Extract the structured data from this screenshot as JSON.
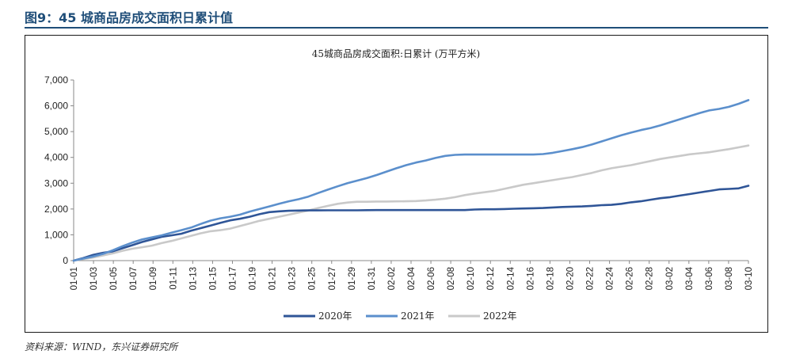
{
  "figure_title": "图9：45 城商品房成交面积日累计值",
  "source_note": "资料来源：WIND，东兴证券研究所",
  "chart_data": {
    "type": "line",
    "title": "45城商品房成交面积:日累计 (万平方米)",
    "xlabel": "",
    "ylabel": "",
    "ylim": [
      0,
      7000
    ],
    "yticks": [
      0,
      1000,
      2000,
      3000,
      4000,
      5000,
      6000,
      7000
    ],
    "ytick_labels": [
      "0",
      "1,000",
      "2,000",
      "3,000",
      "4,000",
      "5,000",
      "6,000",
      "7,000"
    ],
    "grid": false,
    "legend_position": "bottom",
    "x_ticks": [
      "01-01",
      "01-03",
      "01-05",
      "01-07",
      "01-09",
      "01-11",
      "01-13",
      "01-15",
      "01-17",
      "01-19",
      "01-21",
      "01-23",
      "01-25",
      "01-27",
      "01-29",
      "01-31",
      "02-02",
      "02-04",
      "02-06",
      "02-08",
      "02-10",
      "02-12",
      "02-14",
      "02-16",
      "02-18",
      "02-20",
      "02-22",
      "02-24",
      "02-26",
      "02-28",
      "03-02",
      "03-04",
      "03-06",
      "03-08",
      "03-10"
    ],
    "series": [
      {
        "name": "2020年",
        "color": "#2f5597",
        "values": [
          0,
          100,
          220,
          300,
          360,
          480,
          600,
          720,
          820,
          920,
          980,
          1040,
          1160,
          1260,
          1360,
          1460,
          1560,
          1620,
          1700,
          1800,
          1880,
          1910,
          1930,
          1940,
          1945,
          1948,
          1950,
          1950,
          1950,
          1950,
          1955,
          1960,
          1960,
          1960,
          1960,
          1960,
          1960,
          1960,
          1960,
          1960,
          1960,
          1980,
          1990,
          1990,
          2000,
          2010,
          2020,
          2030,
          2040,
          2060,
          2080,
          2090,
          2100,
          2120,
          2150,
          2160,
          2200,
          2260,
          2300,
          2360,
          2420,
          2460,
          2520,
          2580,
          2640,
          2700,
          2760,
          2780,
          2800,
          2900
        ]
      },
      {
        "name": "2021年",
        "color": "#5b8fcc",
        "values": [
          0,
          80,
          160,
          260,
          400,
          560,
          700,
          820,
          900,
          980,
          1080,
          1180,
          1280,
          1420,
          1550,
          1640,
          1700,
          1780,
          1900,
          2000,
          2100,
          2200,
          2300,
          2380,
          2480,
          2620,
          2750,
          2880,
          3000,
          3100,
          3200,
          3320,
          3450,
          3580,
          3700,
          3800,
          3880,
          3980,
          4060,
          4100,
          4110,
          4110,
          4110,
          4110,
          4110,
          4110,
          4110,
          4110,
          4130,
          4180,
          4250,
          4320,
          4400,
          4500,
          4620,
          4740,
          4860,
          4960,
          5060,
          5140,
          5240,
          5360,
          5480,
          5600,
          5720,
          5820,
          5880,
          5960,
          6080,
          6220
        ]
      },
      {
        "name": "2022年",
        "color": "#c9c9c9",
        "values": [
          0,
          60,
          120,
          200,
          280,
          380,
          460,
          520,
          580,
          680,
          760,
          860,
          960,
          1060,
          1140,
          1180,
          1240,
          1340,
          1440,
          1540,
          1620,
          1700,
          1780,
          1860,
          1940,
          2040,
          2120,
          2200,
          2250,
          2280,
          2280,
          2290,
          2290,
          2295,
          2300,
          2310,
          2330,
          2360,
          2400,
          2460,
          2540,
          2600,
          2650,
          2700,
          2780,
          2860,
          2940,
          3000,
          3060,
          3120,
          3180,
          3240,
          3320,
          3400,
          3500,
          3580,
          3640,
          3700,
          3780,
          3860,
          3940,
          4000,
          4060,
          4120,
          4160,
          4200,
          4260,
          4320,
          4390,
          4460
        ]
      }
    ]
  }
}
